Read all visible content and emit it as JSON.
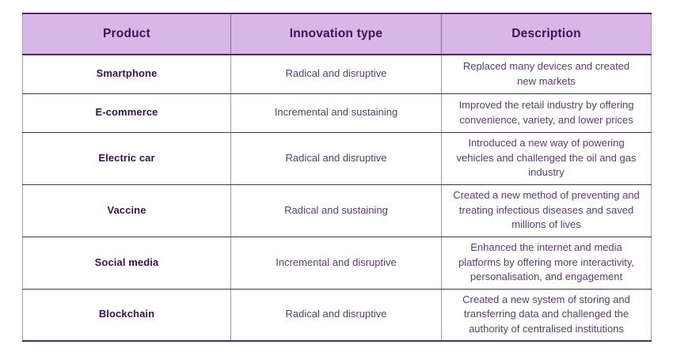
{
  "accent_colors": {
    "header_background": "#d8b6e8",
    "dark_border": "#532a63",
    "light_border": "#ab93bd",
    "header_text": "#3d1353",
    "product_text": "#3b1053",
    "body_text": "#5f3a73"
  },
  "table": {
    "headers": {
      "product": "Product",
      "innovation_type": "Innovation type",
      "description": "Description"
    },
    "rows": [
      {
        "product": "Smartphone",
        "innovation_type": "Radical and disruptive",
        "description": "Replaced many devices and created new markets"
      },
      {
        "product": "E-commerce",
        "innovation_type": "Incremental and sustaining",
        "description": "Improved the retail industry by offering convenience, variety, and lower prices"
      },
      {
        "product": "Electric car",
        "innovation_type": "Radical and disruptive",
        "description": "Introduced a new way of powering vehicles and challenged the oil and gas industry"
      },
      {
        "product": "Vaccine",
        "innovation_type": "Radical and sustaining",
        "description": "Created a new method of preventing and treating infectious diseases and saved millions of lives"
      },
      {
        "product": "Social media",
        "innovation_type": "Incremental and disruptive",
        "description": "Enhanced the internet and media platforms by offering more interactivity, personalisation, and engagement"
      },
      {
        "product": "Blockchain",
        "innovation_type": "Radical and disruptive",
        "description": "Created a new system of storing and transferring data and challenged the authority of centralised institutions"
      }
    ]
  }
}
